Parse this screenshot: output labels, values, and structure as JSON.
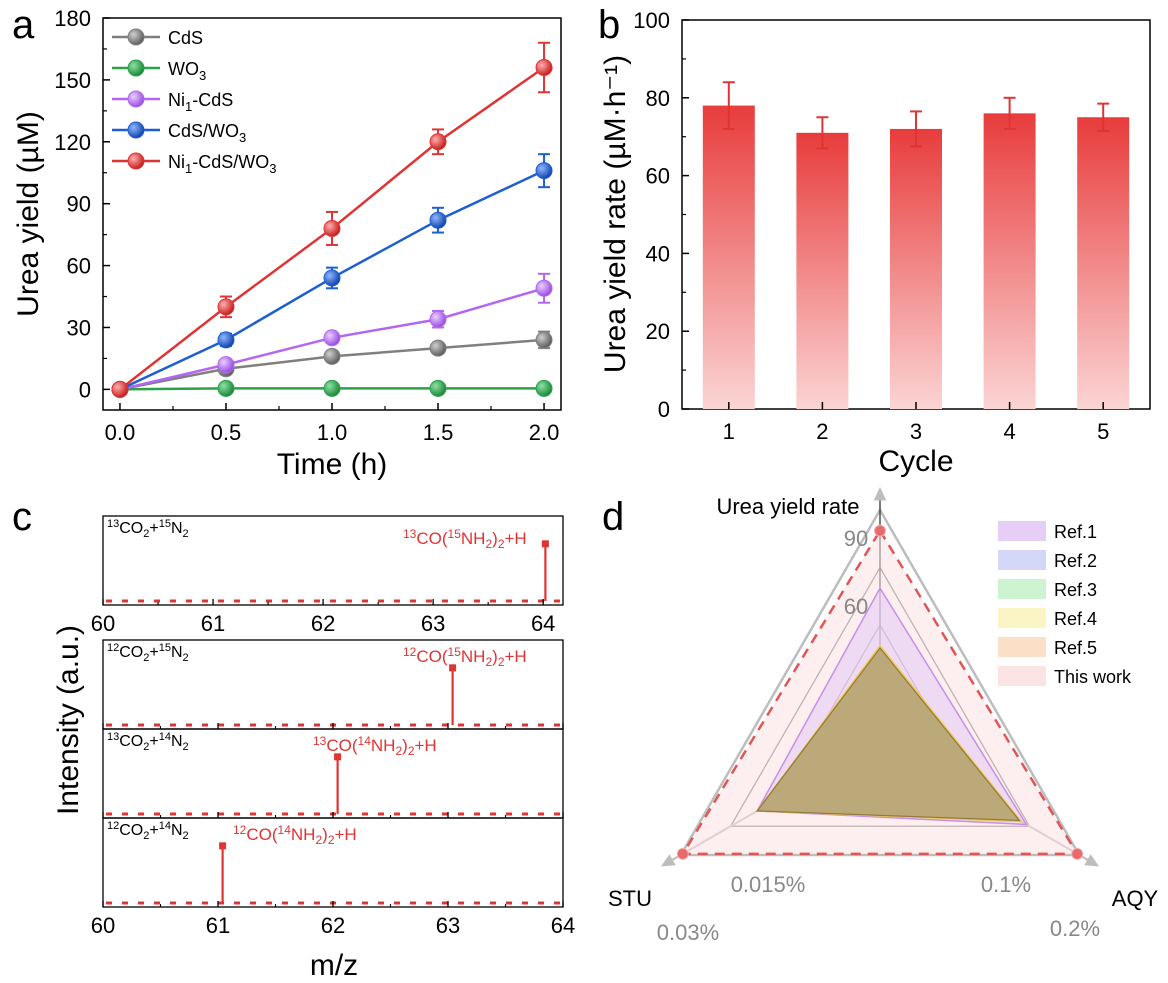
{
  "chart_data": [
    {
      "panel": "a",
      "type": "line",
      "xlabel": "Time (h)",
      "ylabel": "Urea yield (µM)",
      "xlim": [
        -0.08,
        2.08
      ],
      "ylim": [
        -10,
        180
      ],
      "xticks": [
        "0.0",
        "0.5",
        "1.0",
        "1.5",
        "2.0"
      ],
      "yticks": [
        "0",
        "30",
        "60",
        "90",
        "120",
        "150",
        "180"
      ],
      "x": [
        0,
        0.5,
        1.0,
        1.5,
        2.0
      ],
      "series": [
        {
          "name": "CdS",
          "label_main": "CdS",
          "label_sub": "",
          "label_tail": "",
          "color": "#7f7f7f",
          "values": [
            0,
            10,
            16,
            20,
            24
          ],
          "errors": [
            0,
            1.5,
            2,
            2.5,
            4
          ]
        },
        {
          "name": "WO3",
          "label_main": "WO",
          "label_sub": "3",
          "label_tail": "",
          "color": "#2ba14b",
          "values": [
            0,
            0.5,
            0.5,
            0.5,
            0.5
          ],
          "errors": [
            0,
            0.5,
            0.5,
            0.5,
            0.5
          ]
        },
        {
          "name": "Ni1-CdS",
          "label_main": "Ni",
          "label_sub": "1",
          "label_tail": "-CdS",
          "color": "#b366f0",
          "values": [
            0,
            12,
            25,
            34,
            49
          ],
          "errors": [
            0,
            2,
            2.5,
            4,
            7
          ]
        },
        {
          "name": "CdS/WO3",
          "label_main": "CdS/WO",
          "label_sub": "3",
          "label_tail": "",
          "color": "#1d5fd0",
          "values": [
            0,
            24,
            54,
            82,
            106
          ],
          "errors": [
            0,
            3,
            5,
            6,
            8
          ]
        },
        {
          "name": "Ni1-CdS/WO3",
          "label_main": "Ni",
          "label_sub": "1",
          "label_tail": "-CdS/WO₃",
          "color": "#e03434",
          "values": [
            0,
            40,
            78,
            120,
            156
          ],
          "errors": [
            0,
            5,
            8,
            6,
            12
          ]
        }
      ]
    },
    {
      "panel": "b",
      "type": "bar",
      "xlabel": "Cycle",
      "ylabel": "Urea yield rate (µM·h⁻¹)",
      "ylim": [
        0,
        100
      ],
      "yticks": [
        "0",
        "20",
        "40",
        "60",
        "80",
        "100"
      ],
      "categories": [
        "1",
        "2",
        "3",
        "4",
        "5"
      ],
      "values": [
        78,
        71,
        72,
        76,
        75
      ],
      "errors": [
        6,
        4,
        4.5,
        4,
        3.5
      ],
      "color": "#e84545"
    },
    {
      "panel": "c",
      "type": "line",
      "xlabel": "m/z",
      "ylabel": "Intensity (a.u.)",
      "xlim": [
        60,
        64
      ],
      "xticks": [
        "60",
        "61",
        "62",
        "63",
        "64"
      ],
      "subplots": [
        {
          "condition": "13CO2+15N2",
          "c_iso": "13",
          "n_iso": "15",
          "product": "13CO(15NH2)2+H",
          "p_c": "13",
          "p_n": "15",
          "peak_mz": 64.02,
          "peak_rel": 0.62,
          "xmax": 64.18
        },
        {
          "condition": "12CO2+15N2",
          "c_iso": "12",
          "n_iso": "15",
          "product": "12CO(15NH2)2+H",
          "p_c": "12",
          "p_n": "15",
          "peak_mz": 63.04,
          "peak_rel": 0.62
        },
        {
          "condition": "13CO2+14N2",
          "c_iso": "13",
          "n_iso": "14",
          "product": "13CO(14NH2)2+H",
          "p_c": "13",
          "p_n": "14",
          "peak_mz": 62.04,
          "peak_rel": 0.62
        },
        {
          "condition": "12CO2+14N2",
          "c_iso": "12",
          "n_iso": "14",
          "product": "12CO(14NH2)2+H",
          "p_c": "12",
          "p_n": "14",
          "peak_mz": 61.04,
          "peak_rel": 0.62
        }
      ]
    },
    {
      "panel": "d",
      "type": "radar",
      "axes": [
        {
          "name": "Urea yield rate",
          "max": 100,
          "labels": [
            "90",
            "60"
          ]
        },
        {
          "name": "AQY",
          "max": 0.2,
          "labels": [
            "0.2%",
            "0.1%"
          ]
        },
        {
          "name": "STU",
          "max": 0.03,
          "labels": [
            "0.03%",
            "0.015%"
          ]
        }
      ],
      "series": [
        {
          "name": "Ref.1",
          "fill": "#e3c9f5",
          "stroke": "#c78fe8",
          "values": [
            66,
            0.147,
            0.0185
          ]
        },
        {
          "name": "Ref.2",
          "fill": "#cfd3f7",
          "stroke": "#8a95e6",
          "values": [
            40,
            0.14,
            0.0185
          ]
        },
        {
          "name": "Ref.3",
          "fill": "#c9f2cc",
          "stroke": "#7fd685",
          "values": [
            40,
            0.14,
            0.0185
          ]
        },
        {
          "name": "Ref.4",
          "fill": "#fbf3bf",
          "stroke": "#e8cf4f",
          "values": [
            41,
            0.142,
            0.0185
          ]
        },
        {
          "name": "Ref.5",
          "fill": "#fbdcc0",
          "stroke": "#eba36b",
          "values": [
            40,
            0.14,
            0.0185
          ]
        },
        {
          "name": "This work",
          "fill": "#fce1e1",
          "stroke": "#e05555",
          "values": [
            91,
            0.198,
            0.0297
          ]
        }
      ]
    }
  ]
}
